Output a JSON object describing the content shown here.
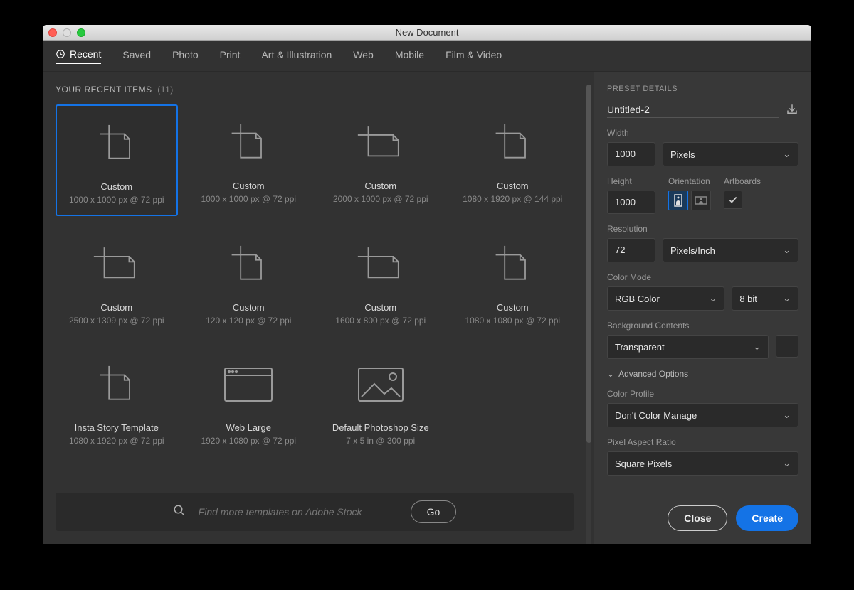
{
  "window": {
    "title": "New Document"
  },
  "tabs": [
    {
      "label": "Recent",
      "active": true
    },
    {
      "label": "Saved"
    },
    {
      "label": "Photo"
    },
    {
      "label": "Print"
    },
    {
      "label": "Art & Illustration"
    },
    {
      "label": "Web"
    },
    {
      "label": "Mobile"
    },
    {
      "label": "Film & Video"
    }
  ],
  "recent": {
    "heading": "YOUR RECENT ITEMS",
    "count": "(11)",
    "items": [
      {
        "name": "Custom",
        "meta": "1000 x 1000 px @ 72 ppi",
        "icon": "doc-tall",
        "selected": true
      },
      {
        "name": "Custom",
        "meta": "1000 x 1000 px @ 72 ppi",
        "icon": "doc-tall"
      },
      {
        "name": "Custom",
        "meta": "2000 x 1000 px @ 72 ppi",
        "icon": "doc-wide"
      },
      {
        "name": "Custom",
        "meta": "1080 x 1920 px @ 144 ppi",
        "icon": "doc-tall"
      },
      {
        "name": "Custom",
        "meta": "2500 x 1309 px @ 72 ppi",
        "icon": "doc-wide"
      },
      {
        "name": "Custom",
        "meta": "120 x 120 px @ 72 ppi",
        "icon": "doc-tall"
      },
      {
        "name": "Custom",
        "meta": "1600 x 800 px @ 72 ppi",
        "icon": "doc-wide"
      },
      {
        "name": "Custom",
        "meta": "1080 x 1080 px @ 72 ppi",
        "icon": "doc-tall"
      },
      {
        "name": "Insta Story Template",
        "meta": "1080 x 1920 px @ 72 ppi",
        "icon": "doc-tall"
      },
      {
        "name": "Web Large",
        "meta": "1920 x 1080 px @ 72 ppi",
        "icon": "browser"
      },
      {
        "name": "Default Photoshop Size",
        "meta": "7 x 5 in @ 300 ppi",
        "icon": "image"
      }
    ]
  },
  "search": {
    "placeholder": "Find more templates on Adobe Stock",
    "go": "Go"
  },
  "preset": {
    "heading": "PRESET DETAILS",
    "name": "Untitled-2",
    "width_label": "Width",
    "width_value": "1000",
    "width_unit": "Pixels",
    "height_label": "Height",
    "height_value": "1000",
    "orientation_label": "Orientation",
    "artboards_label": "Artboards",
    "artboards_checked": true,
    "orientation": "portrait",
    "resolution_label": "Resolution",
    "resolution_value": "72",
    "resolution_unit": "Pixels/Inch",
    "colormode_label": "Color Mode",
    "colormode_value": "RGB Color",
    "colordepth_value": "8 bit",
    "bg_label": "Background Contents",
    "bg_value": "Transparent",
    "advanced_label": "Advanced Options",
    "profile_label": "Color Profile",
    "profile_value": "Don't Color Manage",
    "aspect_label": "Pixel Aspect Ratio",
    "aspect_value": "Square Pixels"
  },
  "buttons": {
    "close": "Close",
    "create": "Create"
  },
  "colors": {
    "accent": "#1473e6",
    "panel_bg": "#323232",
    "side_bg": "#383838",
    "field_bg": "#2a2a2a",
    "text": "#d0d0d0",
    "muted": "#8a8a8a"
  }
}
